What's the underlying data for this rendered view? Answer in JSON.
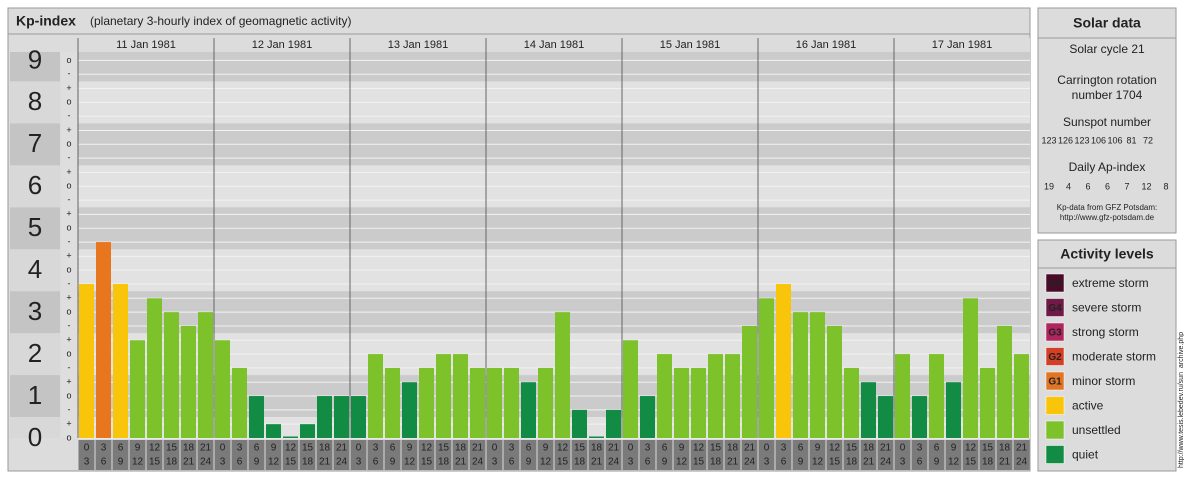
{
  "chart_data": {
    "type": "bar",
    "title": "Kp-index",
    "subtitle": "(planetary 3-hourly index of geomagnetic activity)",
    "days": [
      "11 Jan 1981",
      "12 Jan 1981",
      "13 Jan 1981",
      "14 Jan 1981",
      "15 Jan 1981",
      "16 Jan 1981",
      "17 Jan 1981"
    ],
    "hour_labels": [
      [
        "0",
        "3"
      ],
      [
        "3",
        "6"
      ],
      [
        "6",
        "9"
      ],
      [
        "9",
        "12"
      ],
      [
        "12",
        "15"
      ],
      [
        "15",
        "18"
      ],
      [
        "18",
        "21"
      ],
      [
        "21",
        "24"
      ]
    ],
    "values": [
      3.67,
      4.67,
      3.67,
      2.33,
      3.33,
      3,
      2.67,
      3,
      2.33,
      1.67,
      1,
      0.33,
      0,
      0.33,
      1,
      1,
      1,
      2,
      1.67,
      1.33,
      1.67,
      2,
      2,
      1.67,
      1.67,
      1.67,
      1.33,
      1.67,
      3,
      0.67,
      0,
      0.67,
      2.33,
      1,
      2,
      1.67,
      1.67,
      2,
      2,
      2.67,
      3.33,
      3.67,
      3,
      3,
      2.67,
      1.67,
      1.33,
      1,
      2,
      1,
      2,
      1.33,
      3.33,
      1.67,
      2.67,
      2
    ],
    "colors": [
      "#f8c50b",
      "#e8761f",
      "#f8c50b",
      "#7dc12b",
      "#7dc12b",
      "#7dc12b",
      "#7dc12b",
      "#7dc12b",
      "#7dc12b",
      "#7dc12b",
      "#128c45",
      "#128c45",
      "#128c45",
      "#128c45",
      "#128c45",
      "#128c45",
      "#128c45",
      "#7dc12b",
      "#7dc12b",
      "#128c45",
      "#7dc12b",
      "#7dc12b",
      "#7dc12b",
      "#7dc12b",
      "#7dc12b",
      "#7dc12b",
      "#128c45",
      "#7dc12b",
      "#7dc12b",
      "#128c45",
      "#128c45",
      "#128c45",
      "#7dc12b",
      "#128c45",
      "#7dc12b",
      "#7dc12b",
      "#7dc12b",
      "#7dc12b",
      "#7dc12b",
      "#7dc12b",
      "#7dc12b",
      "#f8c50b",
      "#7dc12b",
      "#7dc12b",
      "#7dc12b",
      "#7dc12b",
      "#128c45",
      "#128c45",
      "#7dc12b",
      "#128c45",
      "#7dc12b",
      "#128c45",
      "#7dc12b",
      "#7dc12b",
      "#7dc12b",
      "#7dc12b"
    ],
    "ylim": [
      0,
      9.2
    ],
    "yticks": [
      0,
      1,
      2,
      3,
      4,
      5,
      6,
      7,
      8,
      9
    ],
    "minor_ticks": [
      {
        "value": 0,
        "label": "o"
      },
      {
        "value": 0.33,
        "label": "+"
      },
      {
        "value": 0.67,
        "label": "-"
      },
      {
        "value": 1,
        "label": "o"
      },
      {
        "value": 1.33,
        "label": "+"
      },
      {
        "value": 1.67,
        "label": "-"
      },
      {
        "value": 2,
        "label": "o"
      },
      {
        "value": 2.33,
        "label": "+"
      },
      {
        "value": 2.67,
        "label": "-"
      },
      {
        "value": 3,
        "label": "o"
      },
      {
        "value": 3.33,
        "label": "+"
      },
      {
        "value": 3.67,
        "label": "-"
      },
      {
        "value": 4,
        "label": "o"
      },
      {
        "value": 4.33,
        "label": "+"
      },
      {
        "value": 4.67,
        "label": "-"
      },
      {
        "value": 5,
        "label": "o"
      },
      {
        "value": 5.33,
        "label": "+"
      },
      {
        "value": 5.67,
        "label": "-"
      },
      {
        "value": 6,
        "label": "o"
      },
      {
        "value": 6.33,
        "label": "+"
      },
      {
        "value": 6.67,
        "label": "-"
      },
      {
        "value": 7,
        "label": "o"
      },
      {
        "value": 7.33,
        "label": "+"
      },
      {
        "value": 7.67,
        "label": "-"
      },
      {
        "value": 8,
        "label": "o"
      },
      {
        "value": 8.33,
        "label": "+"
      },
      {
        "value": 8.67,
        "label": "-"
      },
      {
        "value": 9,
        "label": "o"
      }
    ],
    "grid": true
  },
  "solar_data": {
    "title": "Solar data",
    "cycle": "Solar cycle 21",
    "carrington": [
      "Carrington rotation",
      "number 1704"
    ],
    "sunspot_title": "Sunspot number",
    "sunspot": [
      123,
      126,
      123,
      106,
      106,
      81,
      72
    ],
    "ap_title": "Daily Ap-index",
    "ap": [
      19,
      4,
      6,
      6,
      7,
      12,
      8
    ],
    "source": [
      "Kp-data from GFZ Potsdam:",
      "http://www.gfz-potsdam.de"
    ]
  },
  "activity_levels": {
    "title": "Activity levels",
    "items": [
      {
        "badge": "G5",
        "label": "extreme storm",
        "color": "#4a0b2a"
      },
      {
        "badge": "G4",
        "label": "severe storm",
        "color": "#6f1a47"
      },
      {
        "badge": "G3",
        "label": "strong storm",
        "color": "#b0255e"
      },
      {
        "badge": "G2",
        "label": "moderate storm",
        "color": "#d23f24"
      },
      {
        "badge": "G1",
        "label": "minor storm",
        "color": "#e07625"
      },
      {
        "label": "active",
        "color": "#f8c50b"
      },
      {
        "label": "unsettled",
        "color": "#7dc12b"
      },
      {
        "label": "quiet",
        "color": "#128c45"
      }
    ]
  },
  "watermark": "http://www.tesis.lebedev.ru/sun_archive.php"
}
